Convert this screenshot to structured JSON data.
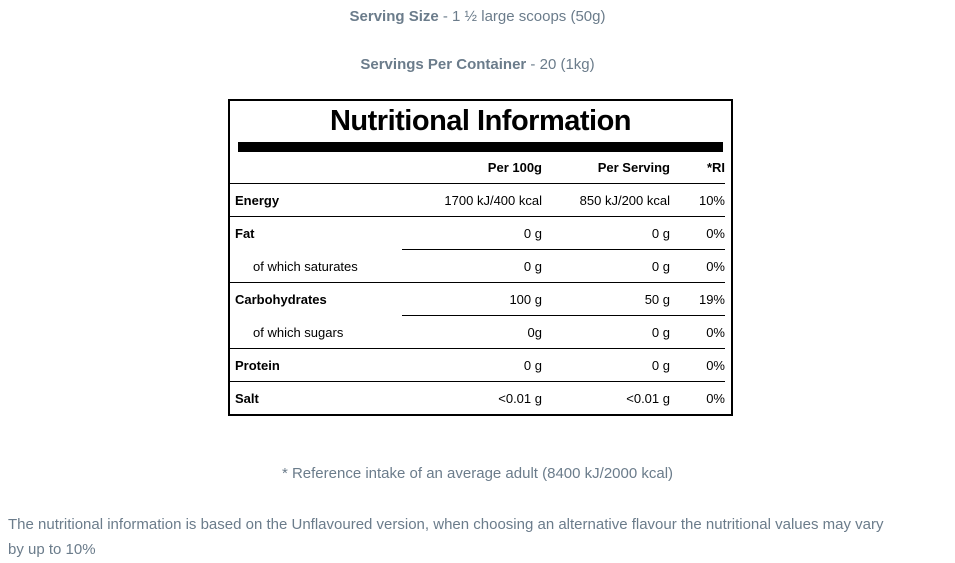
{
  "page": {
    "serving_size_label": "Serving Size",
    "serving_size_value": " - 1 ½ large scoops (50g)",
    "servings_per_container_label": "Servings Per Container",
    "servings_per_container_value": " - 20 (1kg)",
    "footnote": "* Reference intake of an average adult (8400 kJ/2000 kcal)",
    "disclaimer_lines": {
      "0": "The nutritional information is based on the Unflavoured version, when choosing an alternative flavour the nutritional values may vary",
      "1": "by up to 10%"
    }
  },
  "table": {
    "title": "Nutritional Information",
    "columns": {
      "per_100g": "Per 100g",
      "per_serving": "Per Serving",
      "ri": "*RI"
    },
    "rows": [
      {
        "label": "Energy",
        "per_100g": "1700 kJ/400 kcal",
        "per_serving": "850 kJ/200 kcal",
        "ri": "10%",
        "indent": false,
        "divider": "full"
      },
      {
        "label": "Fat",
        "per_100g": "0 g",
        "per_serving": "0 g",
        "ri": "0%",
        "indent": false,
        "divider": "partial"
      },
      {
        "label": "of which saturates",
        "per_100g": "0 g",
        "per_serving": "0 g",
        "ri": "0%",
        "indent": true,
        "divider": "full"
      },
      {
        "label": "Carbohydrates",
        "per_100g": "100 g",
        "per_serving": "50 g",
        "ri": "19%",
        "indent": false,
        "divider": "partial"
      },
      {
        "label": "of which sugars",
        "per_100g": "0g",
        "per_serving": "0 g",
        "ri": "0%",
        "indent": true,
        "divider": "full"
      },
      {
        "label": "Protein",
        "per_100g": "0 g",
        "per_serving": "0 g",
        "ri": "0%",
        "indent": false,
        "divider": "full"
      },
      {
        "label": "Salt",
        "per_100g": "<0.01 g",
        "per_serving": "<0.01 g",
        "ri": "0%",
        "indent": false,
        "divider": "none"
      }
    ]
  },
  "colors": {
    "muted_text": "#6b7c8b",
    "table_text": "#000000",
    "table_border": "#000000",
    "background": "#ffffff"
  }
}
